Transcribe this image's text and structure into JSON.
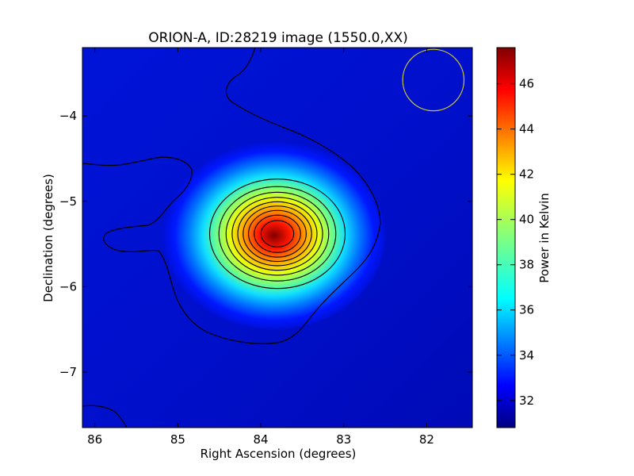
{
  "chart_data": {
    "type": "heatmap",
    "title": "ORION-A, ID:28219 image (1550.0,XX)",
    "xlabel": "Right Ascension (degrees)",
    "ylabel": "Declination (degrees)",
    "xlim": [
      86.15,
      81.45
    ],
    "ylim": [
      -7.65,
      -3.2
    ],
    "x_ticks": [
      86,
      85,
      84,
      83,
      82
    ],
    "y_ticks": [
      -4,
      -5,
      -6,
      -7
    ],
    "x_tick_labels": [
      "86",
      "85",
      "84",
      "83",
      "82"
    ],
    "y_tick_labels": [
      "−4",
      "−5",
      "−6",
      "−7"
    ],
    "colormap": "jet",
    "colorbar": {
      "label": "Power in Kelvin",
      "range": [
        30.8,
        47.6
      ],
      "ticks": [
        32,
        34,
        36,
        38,
        40,
        42,
        44,
        46
      ],
      "tick_labels": [
        "32",
        "34",
        "36",
        "38",
        "40",
        "42",
        "44",
        "46"
      ]
    },
    "peak": {
      "ra": 83.8,
      "dec": -5.38,
      "value": 47.5
    },
    "background_level": 31.4,
    "contour_levels": [
      32.3,
      33.8,
      35.3,
      36.8,
      38.3,
      39.8,
      41.3,
      42.8,
      44.3,
      45.8
    ],
    "beam": {
      "ra": 81.92,
      "dec": -3.58,
      "radius_deg": 0.37,
      "color": "#cccc33"
    },
    "grid": false,
    "legend": "none"
  }
}
